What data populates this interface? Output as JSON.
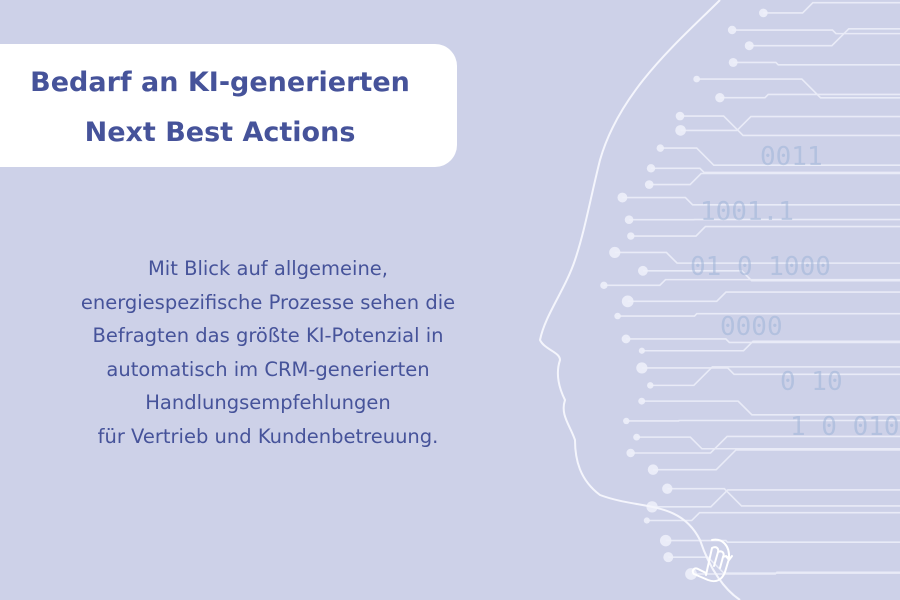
{
  "header": {
    "title_lines": [
      "Bedarf an KI-generierten",
      "Next Best Actions"
    ]
  },
  "main": {
    "body_lines": [
      "Mit Blick auf allgemeine,",
      "energiespezifische Prozesse sehen die",
      "Befragten das größte KI-Potenzial in",
      "automatisch im CRM-generierten",
      "Handlungsempfehlungen",
      "für Vertrieb und Kundenbetreuung."
    ]
  },
  "decoration": {
    "illustration": "ai-head-circuit-profile",
    "binary_digits": [
      "0011",
      "1001.1",
      "01 0 1000",
      "0000",
      "0 10",
      "1 0 010"
    ],
    "icon": "hand-pointer-swipe-icon"
  },
  "colors": {
    "background": "#cdd1e8",
    "text": "#46539a",
    "box": "#ffffff",
    "circuit": "#eef0fa"
  }
}
